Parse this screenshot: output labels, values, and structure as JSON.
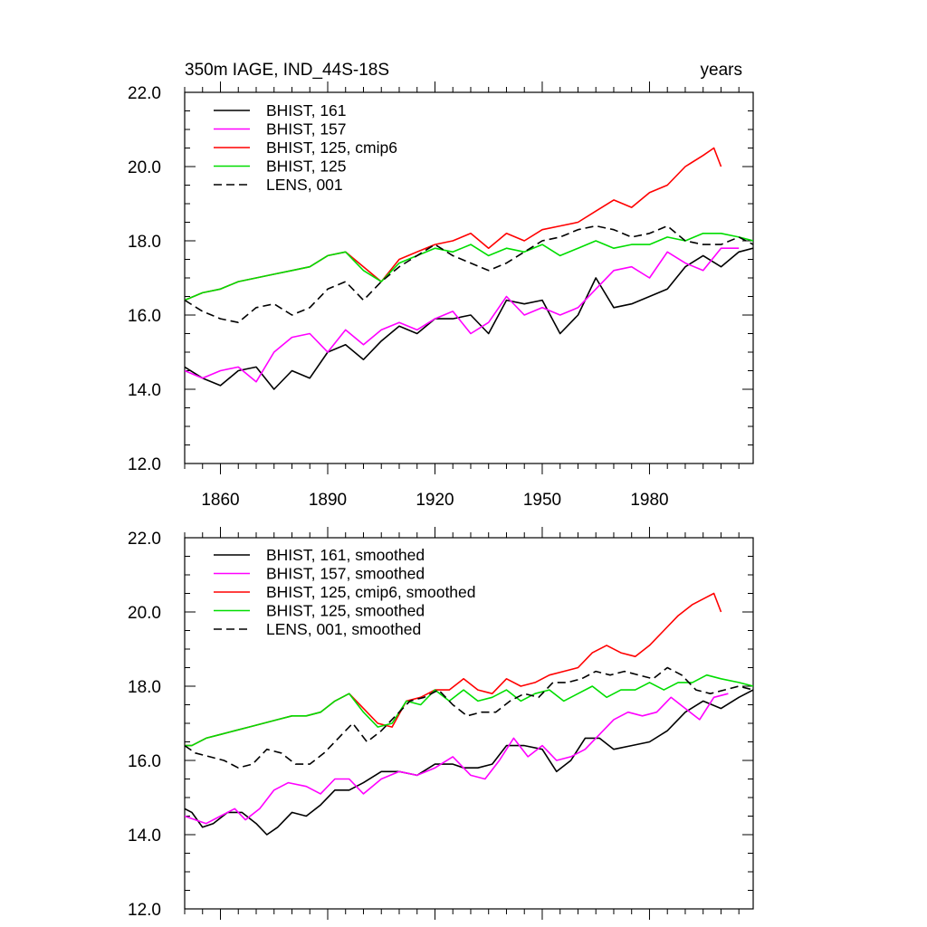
{
  "chart_data": [
    {
      "type": "line",
      "title_left": "350m IAGE, IND_44S-18S",
      "title_right": "years",
      "xlim": [
        1850,
        2009
      ],
      "ylim": [
        12,
        22
      ],
      "xticks": [
        1860,
        1890,
        1920,
        1950,
        1980
      ],
      "yticks": [
        12,
        14,
        16,
        18,
        20,
        22
      ],
      "ytick_labels": [
        "12.0",
        "14.0",
        "16.0",
        "18.0",
        "20.0",
        "22.0"
      ],
      "show_xtick_labels": true,
      "legend_position": "top-left",
      "series": [
        {
          "name": "BHIST, 161",
          "color": "#000000",
          "dash": "solid",
          "x": [
            1850,
            1855,
            1860,
            1865,
            1870,
            1875,
            1880,
            1885,
            1890,
            1895,
            1900,
            1905,
            1910,
            1915,
            1920,
            1925,
            1930,
            1935,
            1940,
            1945,
            1950,
            1955,
            1960,
            1965,
            1970,
            1975,
            1980,
            1985,
            1990,
            1995,
            2000,
            2005,
            2009
          ],
          "y": [
            14.6,
            14.3,
            14.1,
            14.5,
            14.6,
            14.0,
            14.5,
            14.3,
            15.0,
            15.2,
            14.8,
            15.3,
            15.7,
            15.5,
            15.9,
            15.9,
            16.0,
            15.5,
            16.4,
            16.3,
            16.4,
            15.5,
            16.0,
            17.0,
            16.2,
            16.3,
            16.5,
            16.7,
            17.3,
            17.6,
            17.3,
            17.7,
            17.8
          ]
        },
        {
          "name": "BHIST, 157",
          "color": "#ff00ff",
          "dash": "solid",
          "x": [
            1850,
            1855,
            1860,
            1865,
            1870,
            1875,
            1880,
            1885,
            1890,
            1895,
            1900,
            1905,
            1910,
            1915,
            1920,
            1925,
            1930,
            1935,
            1940,
            1945,
            1950,
            1955,
            1960,
            1965,
            1970,
            1975,
            1980,
            1985,
            1990,
            1995,
            2000,
            2005
          ],
          "y": [
            14.5,
            14.3,
            14.5,
            14.6,
            14.2,
            15.0,
            15.4,
            15.5,
            15.0,
            15.6,
            15.2,
            15.6,
            15.8,
            15.6,
            15.9,
            16.1,
            15.5,
            15.8,
            16.5,
            16.0,
            16.2,
            16.0,
            16.2,
            16.7,
            17.2,
            17.3,
            17.0,
            17.7,
            17.4,
            17.2,
            17.8,
            17.8
          ]
        },
        {
          "name": "BHIST, 125, cmip6",
          "color": "#ff0000",
          "dash": "solid",
          "x": [
            1850,
            1855,
            1860,
            1865,
            1870,
            1875,
            1880,
            1885,
            1890,
            1895,
            1900,
            1905,
            1910,
            1915,
            1920,
            1925,
            1930,
            1935,
            1940,
            1945,
            1950,
            1955,
            1960,
            1965,
            1970,
            1975,
            1980,
            1985,
            1990,
            1995,
            1998,
            2000
          ],
          "y": [
            16.4,
            16.6,
            16.7,
            16.9,
            17.0,
            17.1,
            17.2,
            17.3,
            17.6,
            17.7,
            17.3,
            16.9,
            17.5,
            17.7,
            17.9,
            18.0,
            18.2,
            17.8,
            18.2,
            18.0,
            18.3,
            18.4,
            18.5,
            18.8,
            19.1,
            18.9,
            19.3,
            19.5,
            20.0,
            20.3,
            20.5,
            20.0
          ]
        },
        {
          "name": "BHIST, 125",
          "color": "#00dd00",
          "dash": "solid",
          "x": [
            1850,
            1855,
            1860,
            1865,
            1870,
            1875,
            1880,
            1885,
            1890,
            1895,
            1900,
            1905,
            1910,
            1915,
            1920,
            1925,
            1930,
            1935,
            1940,
            1945,
            1950,
            1955,
            1960,
            1965,
            1970,
            1975,
            1980,
            1985,
            1990,
            1995,
            2000,
            2005,
            2009
          ],
          "y": [
            16.4,
            16.6,
            16.7,
            16.9,
            17.0,
            17.1,
            17.2,
            17.3,
            17.6,
            17.7,
            17.2,
            16.9,
            17.4,
            17.6,
            17.8,
            17.7,
            17.9,
            17.6,
            17.8,
            17.7,
            17.9,
            17.6,
            17.8,
            18.0,
            17.8,
            17.9,
            17.9,
            18.1,
            18.0,
            18.2,
            18.2,
            18.1,
            18.0
          ]
        },
        {
          "name": "LENS, 001",
          "color": "#000000",
          "dash": "dashed",
          "x": [
            1850,
            1855,
            1860,
            1865,
            1870,
            1875,
            1880,
            1885,
            1890,
            1895,
            1900,
            1905,
            1910,
            1915,
            1920,
            1925,
            1930,
            1935,
            1940,
            1945,
            1950,
            1955,
            1960,
            1965,
            1970,
            1975,
            1980,
            1985,
            1990,
            1995,
            2000,
            2005,
            2009
          ],
          "y": [
            16.4,
            16.1,
            15.9,
            15.8,
            16.2,
            16.3,
            16.0,
            16.2,
            16.7,
            16.9,
            16.4,
            16.9,
            17.3,
            17.6,
            17.9,
            17.6,
            17.4,
            17.2,
            17.4,
            17.7,
            18.0,
            18.1,
            18.3,
            18.4,
            18.3,
            18.1,
            18.2,
            18.4,
            18.0,
            17.9,
            17.9,
            18.1,
            17.9
          ]
        }
      ]
    },
    {
      "type": "line",
      "title_left": "",
      "title_right": "",
      "xlim": [
        1850,
        2009
      ],
      "ylim": [
        12,
        22
      ],
      "xticks": [
        1860,
        1890,
        1920,
        1950,
        1980
      ],
      "yticks": [
        12,
        14,
        16,
        18,
        20,
        22
      ],
      "ytick_labels": [
        "12.0",
        "14.0",
        "16.0",
        "18.0",
        "20.0",
        "22.0"
      ],
      "show_xtick_labels": false,
      "legend_position": "top-left",
      "series": [
        {
          "name": "BHIST, 161, smoothed",
          "color": "#000000",
          "dash": "solid",
          "x": [
            1850,
            1852,
            1855,
            1858,
            1862,
            1866,
            1870,
            1873,
            1876,
            1880,
            1884,
            1888,
            1892,
            1896,
            1900,
            1905,
            1910,
            1915,
            1920,
            1925,
            1928,
            1932,
            1936,
            1940,
            1945,
            1950,
            1954,
            1958,
            1962,
            1966,
            1970,
            1975,
            1980,
            1985,
            1990,
            1995,
            2000,
            2005,
            2009
          ],
          "y": [
            14.7,
            14.6,
            14.2,
            14.3,
            14.6,
            14.6,
            14.3,
            14.0,
            14.2,
            14.6,
            14.5,
            14.8,
            15.2,
            15.2,
            15.4,
            15.7,
            15.7,
            15.6,
            15.9,
            15.9,
            15.8,
            15.8,
            15.9,
            16.4,
            16.4,
            16.3,
            15.7,
            16.0,
            16.6,
            16.6,
            16.3,
            16.4,
            16.5,
            16.8,
            17.3,
            17.6,
            17.4,
            17.7,
            17.9
          ]
        },
        {
          "name": "BHIST, 157, smoothed",
          "color": "#ff00ff",
          "dash": "solid",
          "x": [
            1850,
            1853,
            1856,
            1860,
            1864,
            1867,
            1871,
            1875,
            1879,
            1884,
            1888,
            1892,
            1896,
            1900,
            1905,
            1910,
            1915,
            1920,
            1925,
            1930,
            1934,
            1938,
            1942,
            1946,
            1950,
            1954,
            1958,
            1962,
            1966,
            1970,
            1974,
            1978,
            1982,
            1986,
            1990,
            1994,
            1998,
            2002
          ],
          "y": [
            14.5,
            14.4,
            14.3,
            14.5,
            14.7,
            14.4,
            14.7,
            15.2,
            15.4,
            15.3,
            15.1,
            15.5,
            15.5,
            15.1,
            15.5,
            15.7,
            15.6,
            15.8,
            16.1,
            15.6,
            15.5,
            16.0,
            16.6,
            16.1,
            16.4,
            16.0,
            16.1,
            16.3,
            16.7,
            17.1,
            17.3,
            17.2,
            17.3,
            17.7,
            17.4,
            17.1,
            17.7,
            17.8
          ]
        },
        {
          "name": "BHIST, 125, cmip6, smoothed",
          "color": "#ff0000",
          "dash": "solid",
          "x": [
            1850,
            1852,
            1856,
            1860,
            1864,
            1868,
            1872,
            1876,
            1880,
            1884,
            1888,
            1892,
            1896,
            1900,
            1904,
            1908,
            1912,
            1916,
            1920,
            1924,
            1928,
            1932,
            1936,
            1940,
            1944,
            1948,
            1952,
            1956,
            1960,
            1964,
            1968,
            1972,
            1976,
            1980,
            1984,
            1988,
            1992,
            1996,
            1998,
            2000
          ],
          "y": [
            16.4,
            16.4,
            16.6,
            16.7,
            16.8,
            16.9,
            17.0,
            17.1,
            17.2,
            17.2,
            17.3,
            17.6,
            17.8,
            17.4,
            17.0,
            16.9,
            17.6,
            17.7,
            17.9,
            17.9,
            18.2,
            17.9,
            17.8,
            18.2,
            18.0,
            18.1,
            18.3,
            18.4,
            18.5,
            18.9,
            19.1,
            18.9,
            18.8,
            19.1,
            19.5,
            19.9,
            20.2,
            20.4,
            20.5,
            20.0
          ]
        },
        {
          "name": "BHIST, 125, smoothed",
          "color": "#00dd00",
          "dash": "solid",
          "x": [
            1850,
            1852,
            1856,
            1860,
            1864,
            1868,
            1872,
            1876,
            1880,
            1884,
            1888,
            1892,
            1896,
            1900,
            1904,
            1908,
            1912,
            1916,
            1920,
            1924,
            1928,
            1932,
            1936,
            1940,
            1944,
            1948,
            1952,
            1956,
            1960,
            1964,
            1968,
            1972,
            1976,
            1980,
            1984,
            1988,
            1992,
            1996,
            2000,
            2005,
            2009
          ],
          "y": [
            16.4,
            16.4,
            16.6,
            16.7,
            16.8,
            16.9,
            17.0,
            17.1,
            17.2,
            17.2,
            17.3,
            17.6,
            17.8,
            17.3,
            16.9,
            17.0,
            17.6,
            17.5,
            17.9,
            17.6,
            17.9,
            17.6,
            17.7,
            17.9,
            17.6,
            17.8,
            17.9,
            17.6,
            17.8,
            18.0,
            17.7,
            17.9,
            17.9,
            18.1,
            17.9,
            18.1,
            18.1,
            18.3,
            18.2,
            18.1,
            18.0
          ]
        },
        {
          "name": "LENS, 001, smoothed",
          "color": "#000000",
          "dash": "dashed",
          "x": [
            1850,
            1853,
            1857,
            1861,
            1865,
            1869,
            1873,
            1877,
            1881,
            1885,
            1889,
            1893,
            1897,
            1901,
            1905,
            1909,
            1913,
            1917,
            1921,
            1925,
            1929,
            1933,
            1937,
            1941,
            1945,
            1949,
            1953,
            1957,
            1961,
            1965,
            1969,
            1973,
            1977,
            1981,
            1985,
            1989,
            1993,
            1997,
            2001,
            2005,
            2009
          ],
          "y": [
            16.4,
            16.2,
            16.1,
            16.0,
            15.8,
            15.9,
            16.3,
            16.2,
            15.9,
            15.9,
            16.2,
            16.6,
            17.0,
            16.5,
            16.8,
            17.2,
            17.6,
            17.7,
            17.9,
            17.5,
            17.2,
            17.3,
            17.3,
            17.6,
            17.8,
            17.7,
            18.1,
            18.1,
            18.2,
            18.4,
            18.3,
            18.4,
            18.3,
            18.2,
            18.5,
            18.3,
            17.9,
            17.8,
            17.9,
            18.0,
            17.9
          ]
        }
      ]
    }
  ]
}
